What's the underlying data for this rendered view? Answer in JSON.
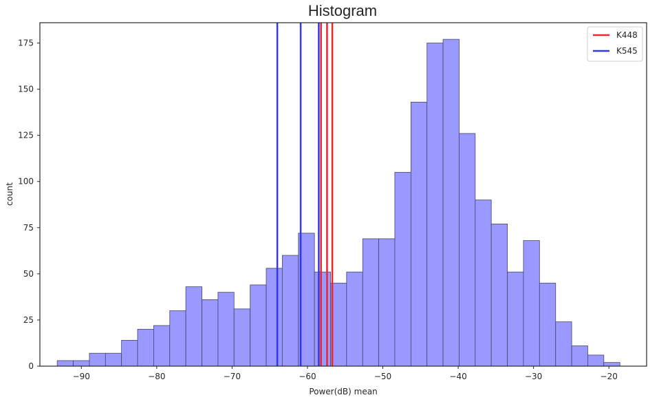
{
  "chart_data": {
    "type": "histogram",
    "title": "Histogram",
    "xlabel": "Power(dB) mean",
    "ylabel": "count",
    "xlim": [
      -95.5,
      -15.0
    ],
    "ylim": [
      0,
      186
    ],
    "x_ticks": [
      -90,
      -80,
      -70,
      -60,
      -50,
      -40,
      -30,
      -20
    ],
    "x_tick_labels": [
      "−90",
      "−80",
      "−70",
      "−60",
      "−50",
      "−40",
      "−30",
      "−20"
    ],
    "y_ticks": [
      0,
      25,
      50,
      75,
      100,
      125,
      150,
      175
    ],
    "y_tick_labels": [
      "0",
      "25",
      "50",
      "75",
      "100",
      "125",
      "150",
      "175"
    ],
    "grid": false,
    "legend_position": "top-right",
    "bin_edges": [
      -93.2,
      -91.07,
      -88.93,
      -86.8,
      -84.67,
      -82.54,
      -80.4,
      -78.27,
      -76.14,
      -74.0,
      -71.87,
      -69.74,
      -67.6,
      -65.47,
      -63.34,
      -61.2,
      -59.07,
      -56.94,
      -54.81,
      -52.67,
      -50.54,
      -48.41,
      -46.27,
      -44.14,
      -42.01,
      -39.87,
      -37.74,
      -35.61,
      -33.47,
      -31.34,
      -29.21,
      -27.07,
      -24.94,
      -22.81,
      -20.68,
      -18.54
    ],
    "counts": [
      3,
      3,
      7,
      7,
      14,
      20,
      22,
      30,
      43,
      36,
      40,
      31,
      44,
      53,
      60,
      72,
      51,
      45,
      51,
      69,
      69,
      105,
      143,
      175,
      177,
      126,
      90,
      77,
      51,
      68,
      45,
      24,
      11,
      6,
      2
    ],
    "bar_color": "#9999ff",
    "bar_edge_color": "#44446a",
    "series": [
      {
        "name": "K448",
        "color": "#e8262e",
        "x": [
          -58.2,
          -57.4,
          -56.7
        ]
      },
      {
        "name": "K545",
        "color": "#3338e0",
        "x": [
          -64.0,
          -60.9,
          -58.5
        ]
      }
    ]
  }
}
